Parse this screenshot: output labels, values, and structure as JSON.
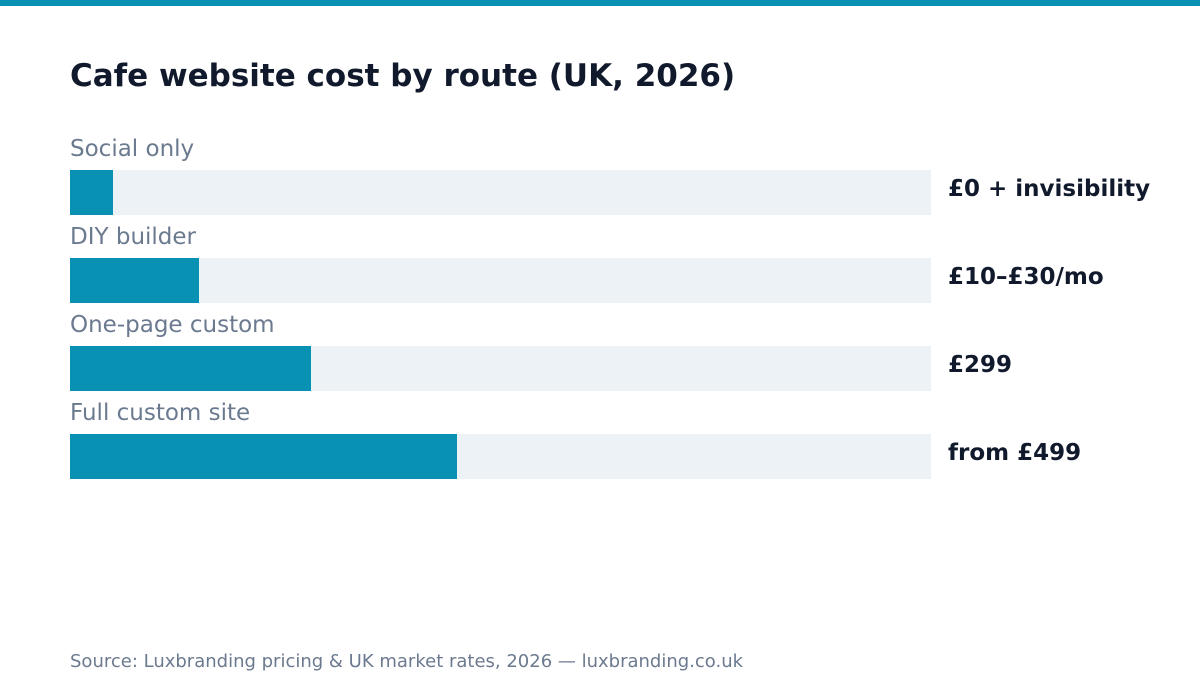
{
  "colors": {
    "accent": "#0891b2",
    "track": "#edf2f7"
  },
  "chart_data": {
    "type": "bar",
    "orientation": "horizontal",
    "title": "Cafe website cost by route (UK, 2026)",
    "categories": [
      "Social only",
      "DIY builder",
      "One-page custom",
      "Full custom site"
    ],
    "values": [
      0.05,
      0.15,
      0.28,
      0.45
    ],
    "value_labels": [
      "£0 + invisibility",
      "£10–£30/mo",
      "£299",
      "from £499"
    ],
    "xlim": [
      0,
      1
    ],
    "grid": false,
    "legend": "none"
  },
  "source": "Source: Luxbranding pricing & UK market rates, 2026 — luxbranding.co.uk"
}
